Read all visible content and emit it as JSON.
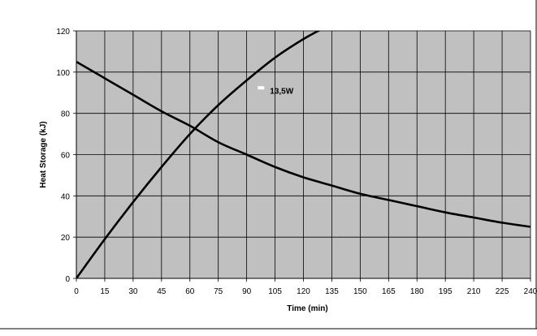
{
  "chart_data": {
    "type": "line",
    "title": "",
    "xlabel": "Time (min)",
    "ylabel": "Heat Storage (kJ)",
    "xlim": [
      0,
      240
    ],
    "ylim": [
      0,
      120
    ],
    "x_ticks": [
      "0",
      "15",
      "30",
      "45",
      "60",
      "75",
      "90",
      "105",
      "120",
      "135",
      "150",
      "165",
      "180",
      "195",
      "210",
      "225",
      "240"
    ],
    "y_ticks": [
      "0",
      "20",
      "40",
      "60",
      "80",
      "100",
      "120"
    ],
    "grid": true,
    "plot_background": "#c0c0c0",
    "line_color": "#000000",
    "annotations": [
      {
        "text": "13,5W",
        "x": 95,
        "y": 90
      }
    ],
    "series": [
      {
        "x": [
          0,
          15,
          30,
          45,
          60,
          75,
          90,
          105,
          120,
          130
        ],
        "y": [
          0,
          19,
          37,
          54,
          70,
          84,
          96,
          107,
          116,
          121
        ]
      },
      {
        "x": [
          0,
          15,
          30,
          45,
          60,
          75,
          90,
          105,
          120,
          135,
          150,
          165,
          180,
          195,
          210,
          225,
          240
        ],
        "y": [
          105,
          97,
          89,
          81,
          74,
          66,
          60,
          54,
          49,
          45,
          41,
          38,
          35,
          32,
          29.5,
          27,
          25
        ]
      }
    ]
  }
}
